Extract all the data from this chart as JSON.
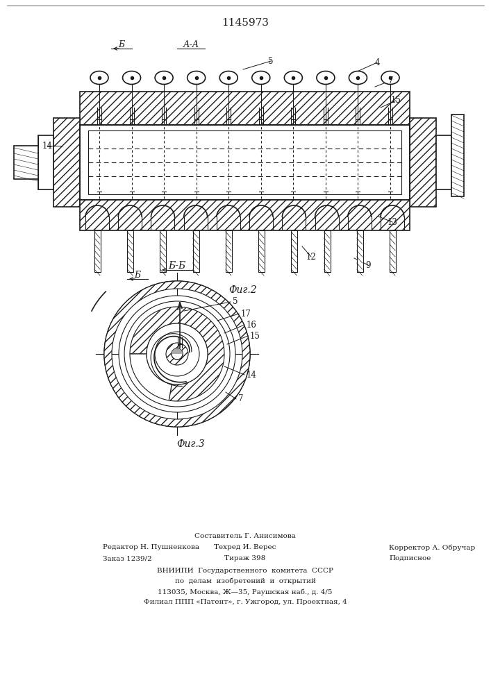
{
  "title": "1145973",
  "fig2_label": "Фиг.2",
  "fig3_label": "Фиг.3",
  "line_color": "#1a1a1a",
  "footer": {
    "line1": "Составитель Г. Анисимова",
    "editor": "Редактор Н. Пушненкова",
    "techred": "Техред И. Верес",
    "corrector": "Корректор А. Обручар",
    "order": "Заказ 1239/2",
    "tirazh": "Тираж 398",
    "podpisnoe": "Подписное",
    "vniip1": "ВНИИПИ  Государственного  комитета  СССР",
    "vniip2": "по  делам  изобретений  и  открытий",
    "addr1": "113035, Москва, Ж—35, Раушская наб., д. 4/5",
    "addr2": "Филиал ППП «Патент», г. Ужгород, ул. Проектная, 4"
  }
}
